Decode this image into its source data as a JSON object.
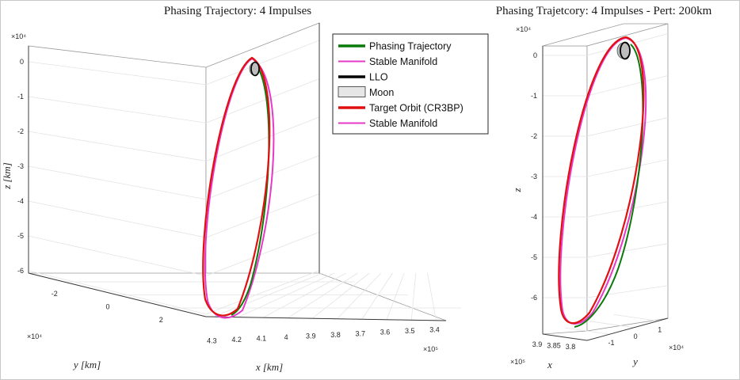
{
  "chart_data": [
    {
      "type": "line",
      "title": "Phasing Trajectory: 4 Impulses",
      "xlabel": "x [km]",
      "ylabel": "y [km]",
      "zlabel": "z [km]",
      "x_ticks": [
        "4.3",
        "4.2",
        "4.1",
        "4",
        "3.9",
        "3.8",
        "3.7",
        "3.6",
        "3.5",
        "3.4"
      ],
      "x_exponent": "×10⁵",
      "y_ticks": [
        "-2",
        "0",
        "2"
      ],
      "y_exponent": "×10⁴",
      "z_ticks": [
        "0",
        "-1",
        "-2",
        "-3",
        "-4",
        "-5",
        "-6"
      ],
      "z_exponent": "×10⁴",
      "grid": true,
      "legend_position": "top-right",
      "legend": [
        {
          "label": "Phasing Trajectory",
          "color": "#0b7a0b",
          "kind": "line"
        },
        {
          "label": "Stable Manifold",
          "color": "#e639c8",
          "kind": "line"
        },
        {
          "label": "LLO",
          "color": "#000000",
          "kind": "line"
        },
        {
          "label": "Moon",
          "color": "#e6e6e6",
          "kind": "patch"
        },
        {
          "label": "Target Orbit (CR3BP)",
          "color": "#e01010",
          "kind": "line"
        },
        {
          "label": "Stable Manifold",
          "color": "#e639c8",
          "kind": "line"
        }
      ],
      "series": [
        {
          "name": "Phasing Trajectory",
          "color": "#0b7a0b"
        },
        {
          "name": "Stable Manifold",
          "color": "#e639c8"
        },
        {
          "name": "LLO",
          "color": "#000000"
        },
        {
          "name": "Moon",
          "color": "#e6e6e6"
        },
        {
          "name": "Target Orbit (CR3BP)",
          "color": "#e01010"
        }
      ]
    },
    {
      "type": "line",
      "title": "Phasing Trajetcory: 4 Impulses - Pert: 200km",
      "xlabel": "x",
      "ylabel": "y",
      "zlabel": "z",
      "x_ticks": [
        "3.9",
        "3.85",
        "3.8"
      ],
      "x_exponent": "×10⁵",
      "y_ticks": [
        "-1",
        "0",
        "1"
      ],
      "y_exponent": "×10⁴",
      "z_ticks": [
        "0",
        "-1",
        "-2",
        "-3",
        "-4",
        "-5",
        "-6"
      ],
      "z_exponent": "×10⁴",
      "grid": true,
      "series": [
        {
          "name": "Phasing Trajectory",
          "color": "#0b7a0b"
        },
        {
          "name": "Stable Manifold",
          "color": "#e639c8"
        },
        {
          "name": "Target Orbit (CR3BP)",
          "color": "#e01010"
        }
      ]
    }
  ]
}
